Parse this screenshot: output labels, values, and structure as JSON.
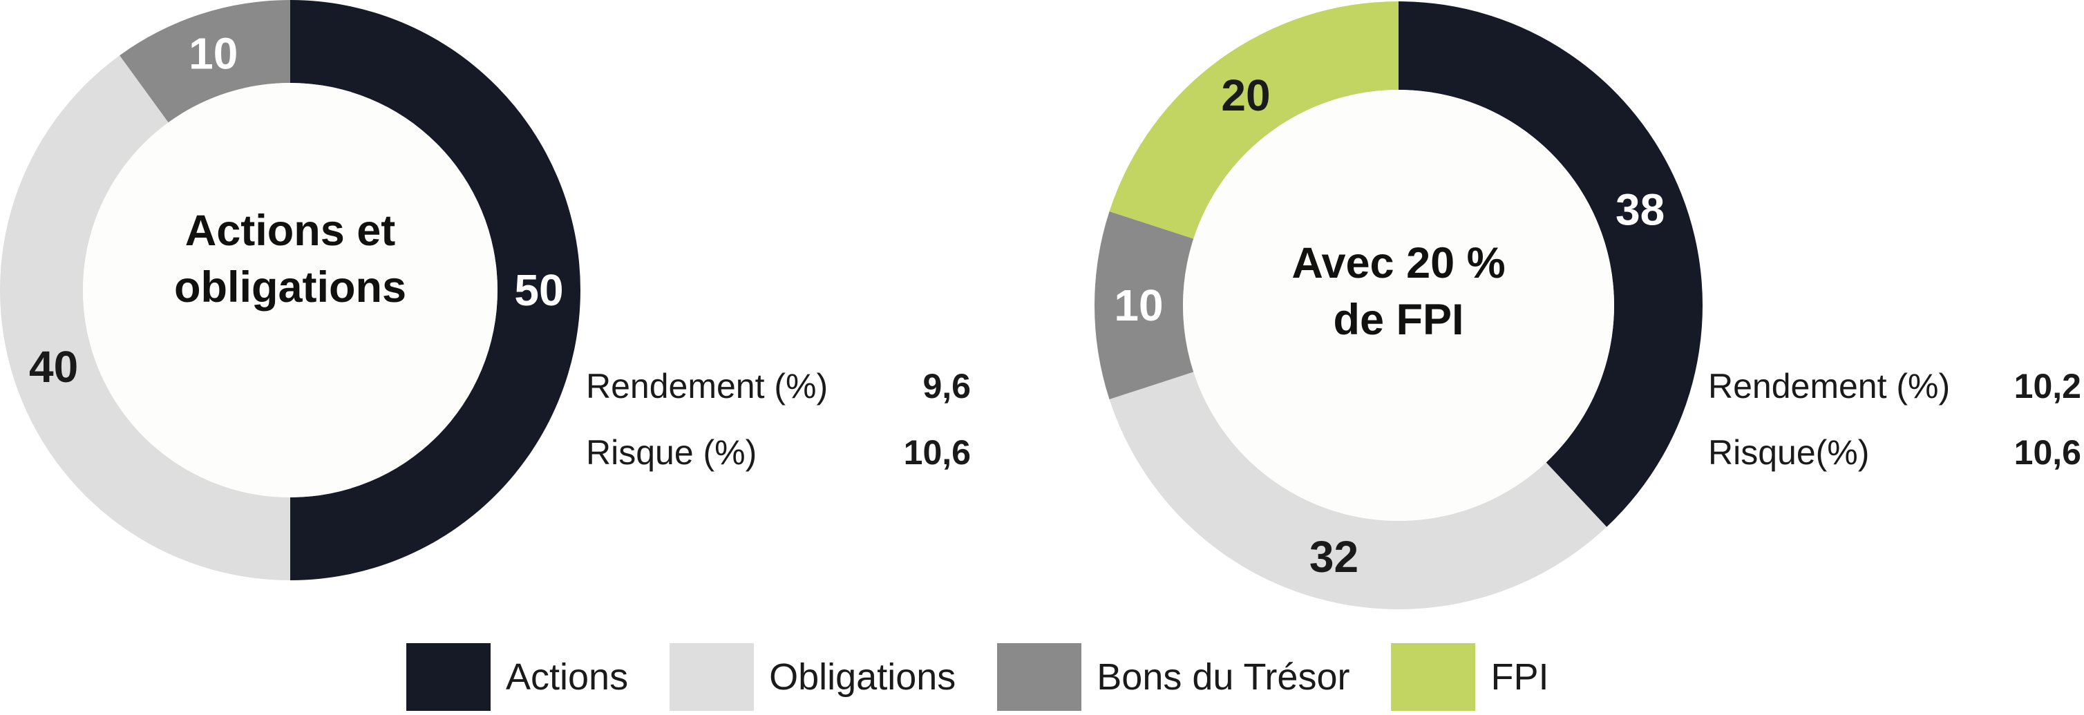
{
  "colors": {
    "actions": "#151a26",
    "obligations": "#dedede",
    "bons": "#8a8a8a",
    "fpi": "#c2d462",
    "center_fill": "#fdfdfb"
  },
  "legend": [
    {
      "key": "actions",
      "label": "Actions"
    },
    {
      "key": "obligations",
      "label": "Obligations"
    },
    {
      "key": "bons",
      "label": "Bons du Trésor"
    },
    {
      "key": "fpi",
      "label": "FPI"
    }
  ],
  "chart_data": [
    {
      "type": "pie",
      "title": "Actions et obligations",
      "title_lines": [
        "Actions et",
        "obligations"
      ],
      "slices": [
        {
          "key": "actions",
          "label": "Actions",
          "value": 50,
          "text": "50"
        },
        {
          "key": "obligations",
          "label": "Obligations",
          "value": 40,
          "text": "40"
        },
        {
          "key": "bons",
          "label": "Bons du Trésor",
          "value": 10,
          "text": "10"
        }
      ],
      "stats": [
        {
          "label": "Rendement (%)",
          "value": "9,6"
        },
        {
          "label": "Risque (%)",
          "value": "10,6"
        }
      ]
    },
    {
      "type": "pie",
      "title": "Avec 20 % de FPI",
      "title_lines": [
        "Avec 20 %",
        "de FPI"
      ],
      "slices": [
        {
          "key": "actions",
          "label": "Actions",
          "value": 38,
          "text": "38"
        },
        {
          "key": "obligations",
          "label": "Obligations",
          "value": 32,
          "text": "32"
        },
        {
          "key": "bons",
          "label": "Bons du Trésor",
          "value": 10,
          "text": "10"
        },
        {
          "key": "fpi",
          "label": "FPI",
          "value": 20,
          "text": "20"
        }
      ],
      "stats": [
        {
          "label": "Rendement (%)",
          "value": "10,2"
        },
        {
          "label": "Risque(%)",
          "value": "10,6"
        }
      ]
    }
  ]
}
